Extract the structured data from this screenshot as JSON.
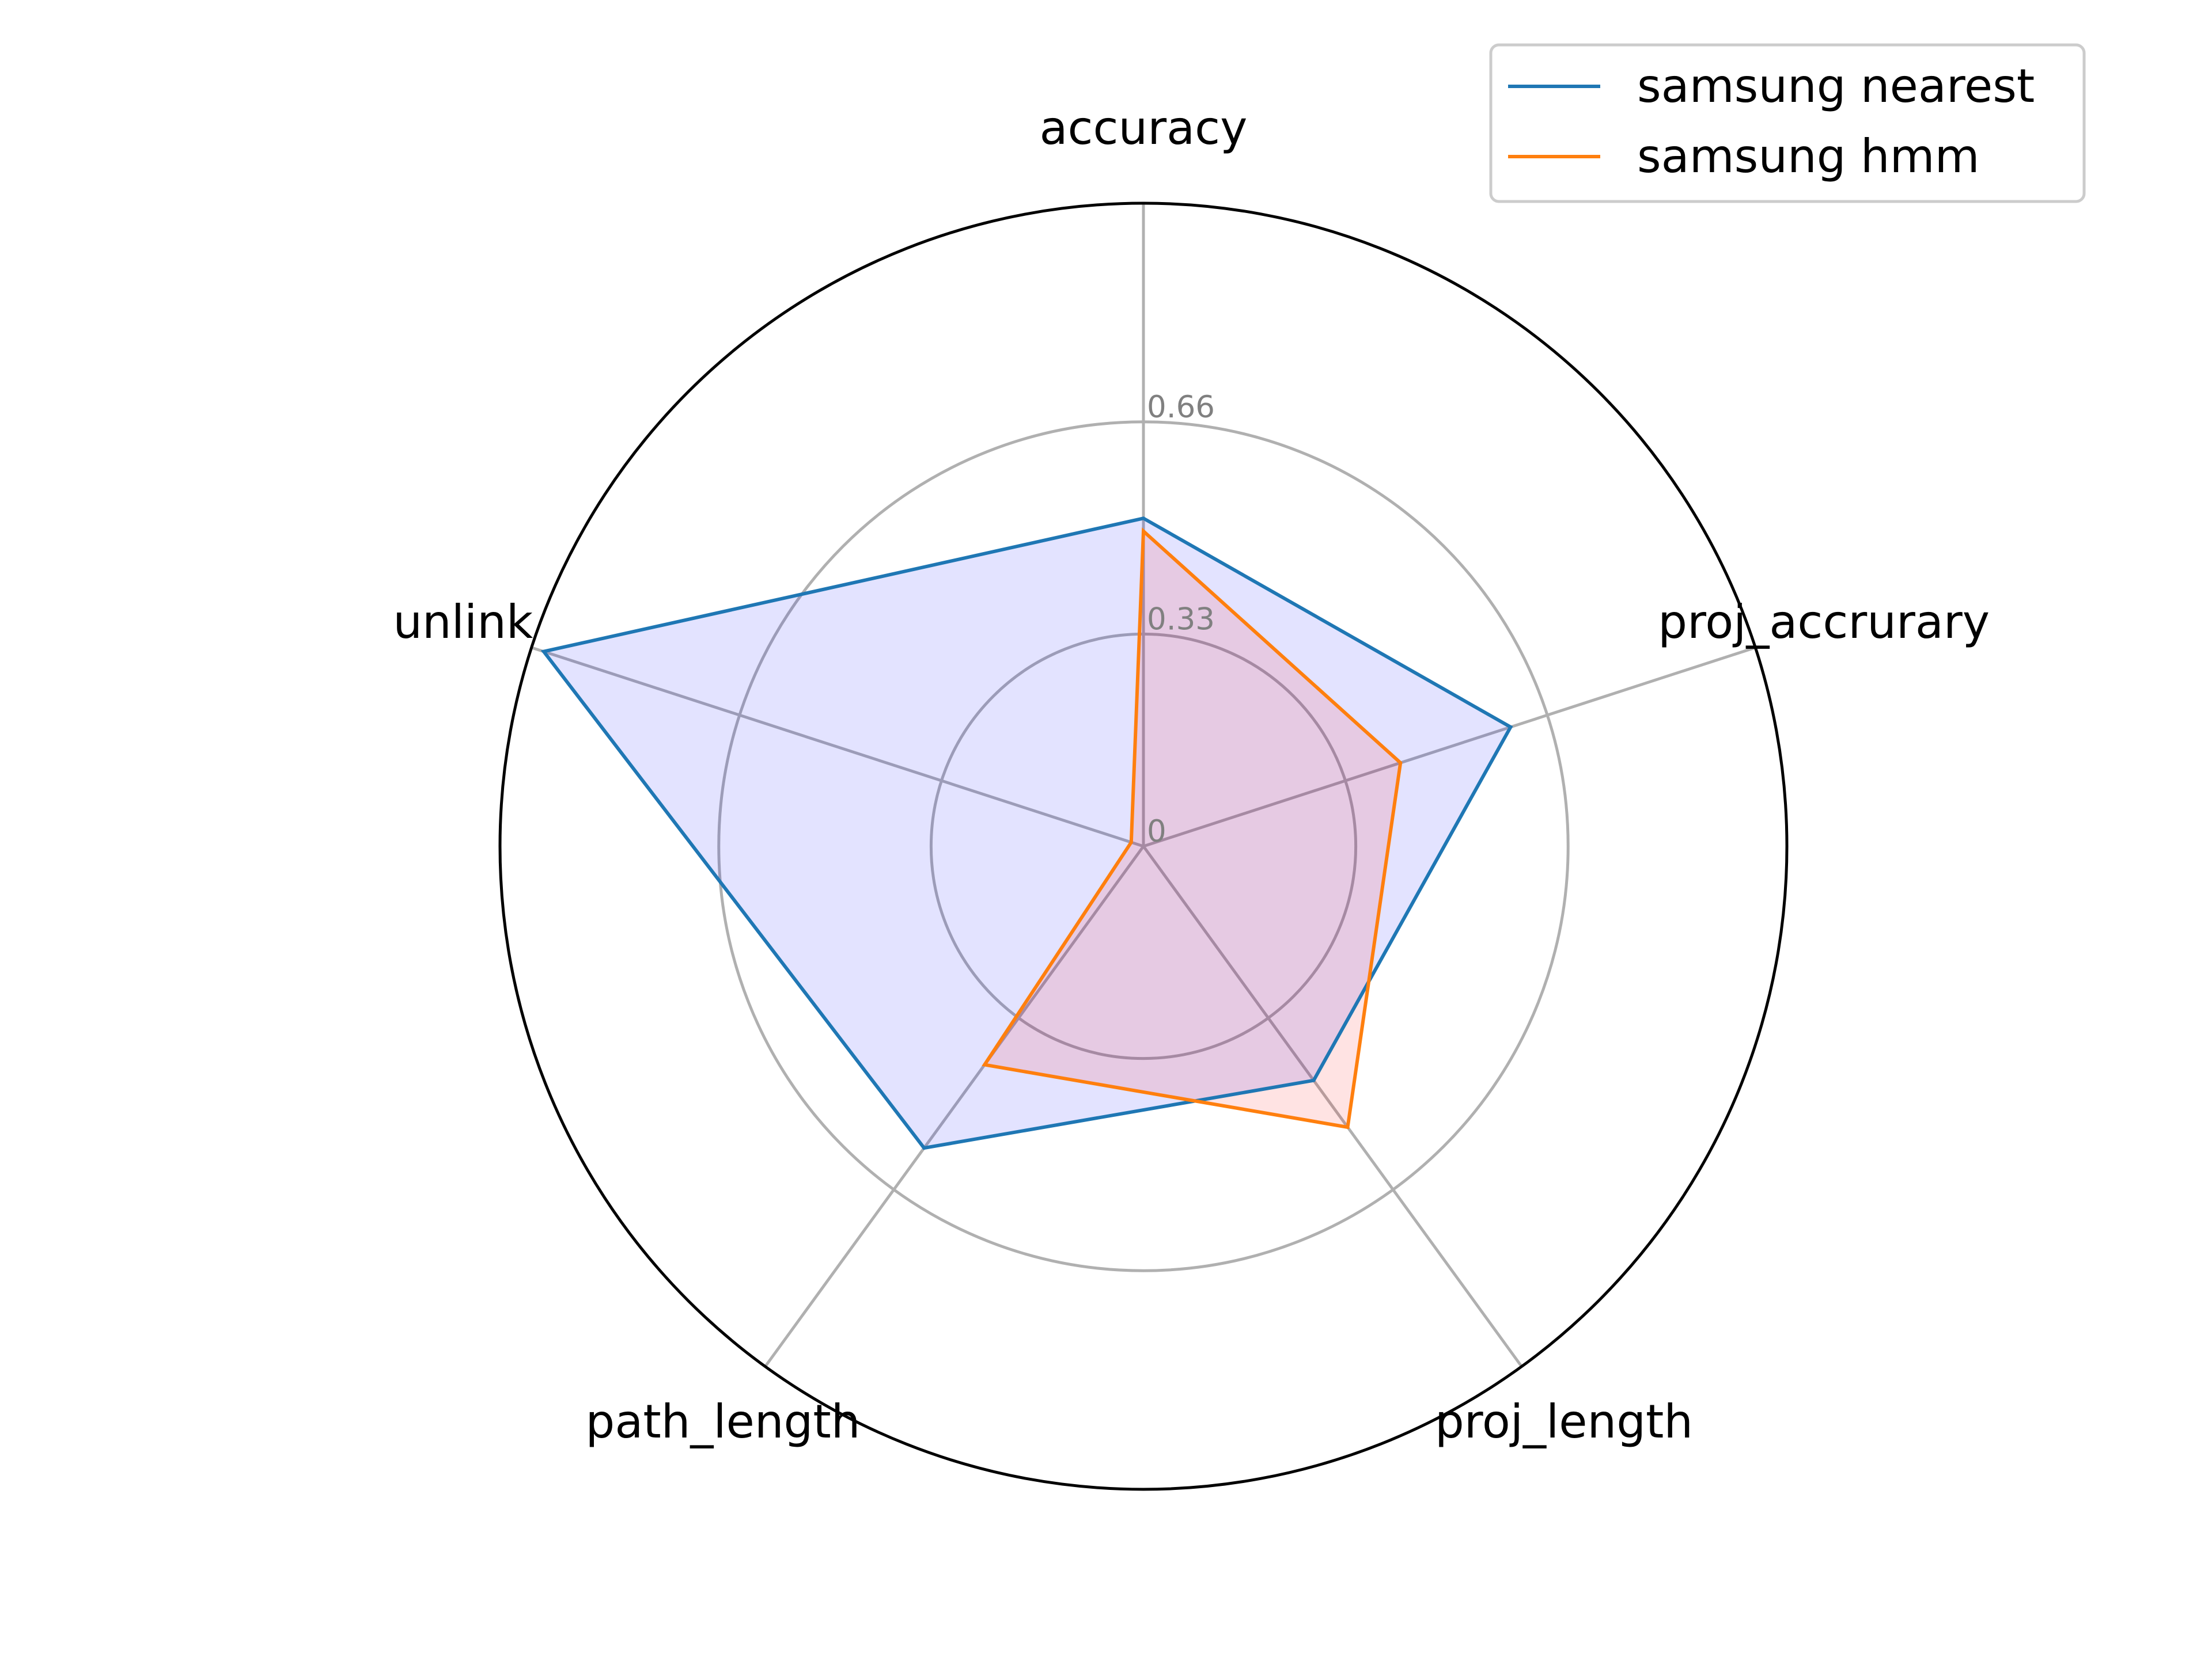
{
  "chart_data": {
    "type": "radar",
    "axes": [
      "accuracy",
      "proj_accrurary",
      "proj_length",
      "path_length",
      "unlink"
    ],
    "rlim": [
      0,
      1.0
    ],
    "rticks": [
      0,
      0.33,
      0.66
    ],
    "rtick_labels": [
      "0",
      "0.33",
      "0.66"
    ],
    "grid": true,
    "legend_position": "top-right",
    "series": [
      {
        "name": "samsung nearest",
        "values": [
          0.51,
          0.6,
          0.45,
          0.58,
          0.98
        ],
        "line_color": "#1f77b4",
        "fill_color": "#0000ff",
        "fill_opacity": 0.11
      },
      {
        "name": "samsung hmm",
        "values": [
          0.49,
          0.42,
          0.54,
          0.42,
          0.02
        ],
        "line_color": "#ff7f0e",
        "fill_color": "#ff0000",
        "fill_opacity": 0.11
      }
    ]
  }
}
